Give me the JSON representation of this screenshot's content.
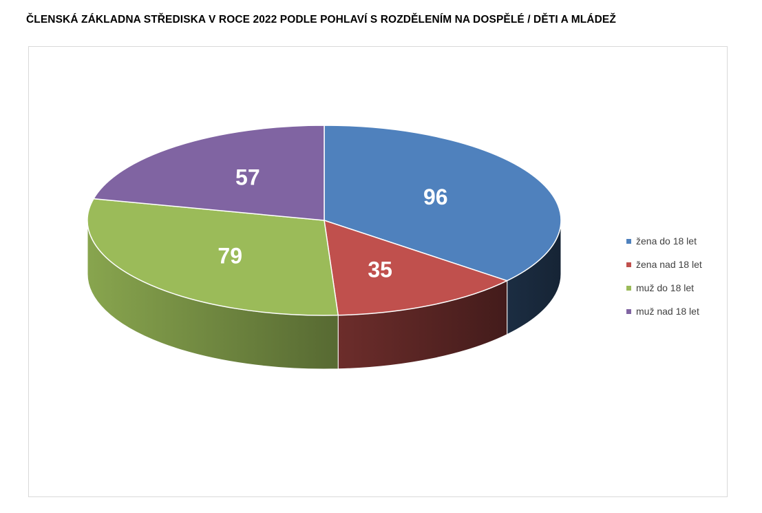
{
  "chart_data": {
    "type": "pie",
    "title": "ČLENSKÁ ZÁKLADNA STŘEDISKA V ROCE 2022 PODLE POHLAVÍ S ROZDĚLENÍM NA DOSPĚLÉ / DĚTI A MLÁDEŽ",
    "three_d": true,
    "legend_position": "right",
    "data_labels": true,
    "slices": [
      {
        "label": "žena do 18 let",
        "value": 96,
        "color": "#4F81BD"
      },
      {
        "label": "žena nad 18 let",
        "value": 35,
        "color": "#C0504D"
      },
      {
        "label": "muž do 18 let",
        "value": 79,
        "color": "#9BBB59"
      },
      {
        "label": "muž nad 18 let",
        "value": 57,
        "color": "#8064A2"
      }
    ]
  }
}
